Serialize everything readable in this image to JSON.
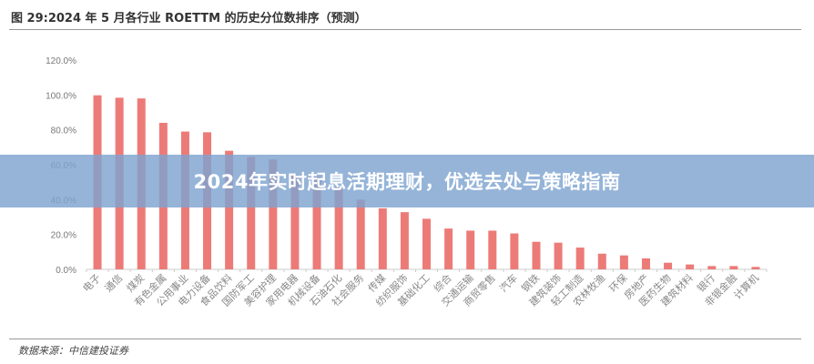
{
  "banner": "2024年实时起息活期理财，优选去处与策略指南",
  "source": "数据来源：中信建投证券",
  "chart_data": {
    "type": "bar",
    "title": "图 29:2024 年 5 月各行业 ROETTM 的历史分位数排序（预测）",
    "xlabel": "",
    "ylabel": "",
    "ylim": [
      0,
      120
    ],
    "yticks": [
      "0.0%",
      "20.0%",
      "40.0%",
      "60.0%",
      "80.0%",
      "100.0%",
      "120.0%"
    ],
    "categories": [
      "电子",
      "通信",
      "煤炭",
      "有色金属",
      "公用事业",
      "电力设备",
      "食品饮料",
      "国防军工",
      "美容护理",
      "家用电器",
      "机械设备",
      "石油石化",
      "社会服务",
      "传媒",
      "纺织服饰",
      "基础化工",
      "综合",
      "交通运输",
      "商贸零售",
      "汽车",
      "钢铁",
      "建筑装饰",
      "轻工制造",
      "农林牧渔",
      "环保",
      "房地产",
      "医药生物",
      "建筑材料",
      "银行",
      "非银金融",
      "计算机"
    ],
    "values": [
      99.8,
      98.4,
      98.0,
      84.0,
      79.0,
      78.6,
      68.0,
      64.5,
      63.0,
      54.0,
      53.0,
      47.0,
      40.0,
      35.0,
      32.8,
      29.0,
      23.4,
      22.2,
      22.2,
      20.6,
      15.8,
      15.3,
      12.5,
      9.0,
      8.0,
      6.3,
      3.8,
      2.8,
      1.9,
      1.9,
      1.4
    ],
    "color": "#ec7b78",
    "grid": false
  }
}
